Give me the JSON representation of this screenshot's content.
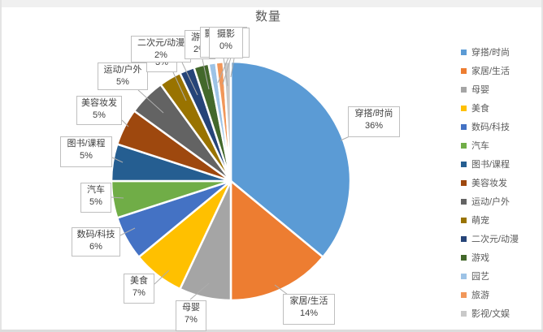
{
  "title": "数量",
  "chart_data": {
    "type": "pie",
    "title": "数量",
    "categories": [
      "穿搭/时尚",
      "家居/生活",
      "母婴",
      "美食",
      "数码/科技",
      "汽车",
      "图书/课程",
      "美容妆发",
      "运动/户外",
      "萌宠",
      "二次元/动漫",
      "游戏",
      "园艺",
      "旅游",
      "影视/文娱",
      "摄影"
    ],
    "values": [
      36,
      14,
      7,
      7,
      6,
      5,
      5,
      5,
      5,
      3,
      2,
      2,
      1,
      1,
      1,
      0
    ],
    "pct_labels": [
      "36%",
      "14%",
      "7%",
      "7%",
      "6%",
      "5%",
      "5%",
      "5%",
      "5%",
      "3%",
      "2%",
      "2%",
      "1%",
      "1%",
      "1%",
      "0%"
    ],
    "colors": [
      "#5B9BD5",
      "#ED7D31",
      "#A5A5A5",
      "#FFC000",
      "#4472C4",
      "#70AD47",
      "#255E91",
      "#9E480E",
      "#636363",
      "#997300",
      "#264478",
      "#43682B",
      "#9DC3E6",
      "#F1975A",
      "#C9C9C9",
      "#FFE699"
    ],
    "unit": "%",
    "start_angle_deg": 0,
    "direction": "clockwise",
    "legend_position": "right",
    "legend_visible_count": 15,
    "title_color": "#595959",
    "label_text_color": "#404040"
  }
}
